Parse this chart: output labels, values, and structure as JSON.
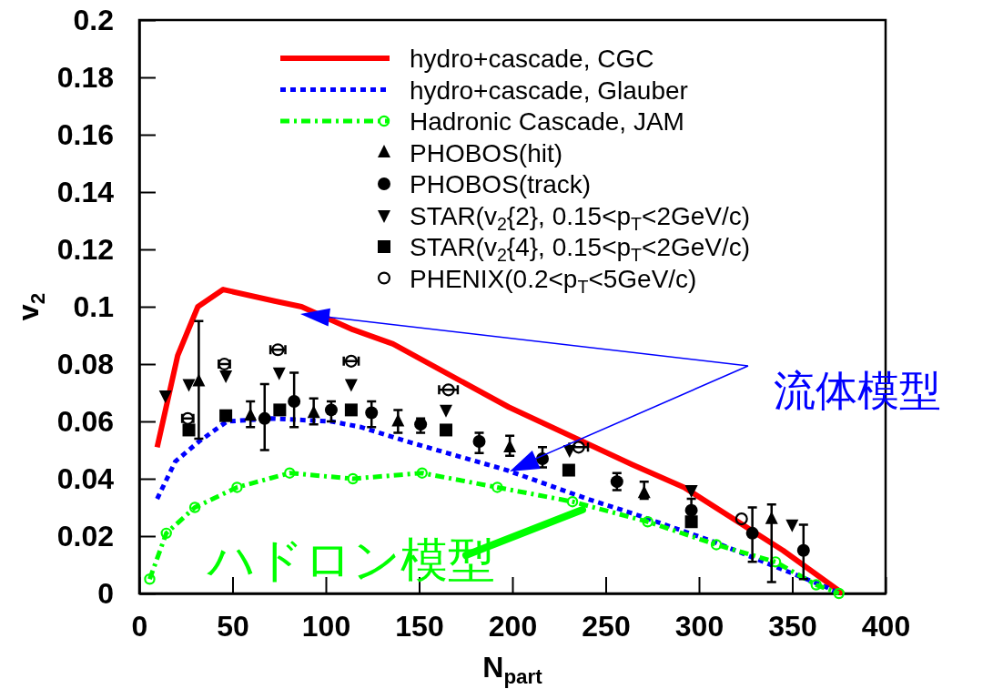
{
  "chart_data": {
    "type": "scatter",
    "xlabel": "N$_{part}$",
    "ylabel": "v$_{2}$",
    "xlim": [
      0,
      400
    ],
    "ylim": [
      0,
      0.2
    ],
    "xticks": [
      0,
      50,
      100,
      150,
      200,
      250,
      300,
      350,
      400
    ],
    "yticks": [
      0,
      0.02,
      0.04,
      0.06,
      0.08,
      0.1,
      0.12,
      0.14,
      0.16,
      0.18,
      0.2
    ],
    "grid": false,
    "legend": "top right",
    "series": [
      {
        "name": "hydro+cascade, CGC",
        "type": "line",
        "color": "#ff0000",
        "line_style": "solid",
        "marker": "none",
        "x": [
          9.6,
          20.6,
          31.4,
          45,
          72.5,
          87,
          114.5,
          136,
          198,
          264,
          292,
          345,
          377
        ],
        "values": [
          0.051,
          0.083,
          0.1,
          0.106,
          0.102,
          0.1,
          0.092,
          0.087,
          0.065,
          0.045,
          0.037,
          0.015,
          0
        ]
      },
      {
        "name": "hydro+cascade, Glauber",
        "type": "line",
        "color": "#0000ff",
        "line_style": "dotted",
        "marker": "none",
        "x": [
          9.6,
          19.3,
          32,
          47,
          71,
          103,
          119,
          143.5,
          197,
          240,
          264,
          308,
          369,
          375
        ],
        "values": [
          0.033,
          0.046,
          0.053,
          0.06,
          0.061,
          0.06,
          0.058,
          0.053,
          0.043,
          0.033,
          0.028,
          0.018,
          0.002,
          0
        ]
      },
      {
        "name": "Hadronic Cascade, JAM",
        "type": "line",
        "color": "#00ff00",
        "line_style": "dashdot",
        "marker": "circle-open",
        "x": [
          5.6,
          14.5,
          29.8,
          52.4,
          80.6,
          114.5,
          151.6,
          191.9,
          232.2,
          272.5,
          309.3,
          341,
          362.8,
          375
        ],
        "values": [
          0.005,
          0.021,
          0.03,
          0.037,
          0.042,
          0.04,
          0.042,
          0.037,
          0.032,
          0.025,
          0.017,
          0.011,
          0.003,
          0
        ]
      },
      {
        "name": "PHOBOS(hit)",
        "type": "scatter",
        "color": "#000000",
        "marker": "triangle",
        "x": [
          31.9,
          59.6,
          93.5,
          138.7,
          198.6,
          270.6,
          338.9
        ],
        "values": [
          0.074,
          0.062,
          0.063,
          0.06,
          0.051,
          0.035,
          0.026
        ],
        "errors": [
          [
            0.054,
            0.095
          ],
          [
            0.058,
            0.067
          ],
          [
            0.059,
            0.068
          ],
          [
            0.056,
            0.064
          ],
          [
            0.048,
            0.055
          ],
          [
            0.033,
            0.039
          ],
          [
            0.004,
            0.031
          ]
        ]
      },
      {
        "name": "PHOBOS(track)",
        "type": "scatter",
        "color": "#000000",
        "marker": "circle",
        "x": [
          67.2,
          83,
          102.9,
          124.5,
          150.8,
          182.2,
          216.1,
          256,
          295.9,
          328.6,
          356
        ],
        "values": [
          0.061,
          0.067,
          0.064,
          0.063,
          0.059,
          0.053,
          0.047,
          0.039,
          0.029,
          0.021,
          0.015
        ],
        "errors": [
          [
            0.05,
            0.073
          ],
          [
            0.058,
            0.077
          ],
          [
            0.06,
            0.067
          ],
          [
            0.058,
            0.067
          ],
          [
            0.056,
            0.061
          ],
          [
            0.049,
            0.056
          ],
          [
            0.044,
            0.051
          ],
          [
            0.036,
            0.042
          ],
          [
            0.029,
            0.033
          ],
          [
            0.011,
            0.03
          ],
          [
            0.005,
            0.024
          ]
        ]
      },
      {
        "name": "STAR(v$_{2}${2}, 0.15<p$_{T}$<2GeV/c)",
        "type": "scatter",
        "color": "#000000",
        "marker": "triangle-down",
        "x": [
          14,
          26.6,
          46.4,
          75,
          113.6,
          164.4,
          230.6,
          295.9,
          349.9
        ],
        "values": [
          0.069,
          0.073,
          0.076,
          0.077,
          0.073,
          0.064,
          0.05,
          0.036,
          0.024
        ]
      },
      {
        "name": "STAR(v$_{2}${4}, 0.15<p$_{T}$<2GeV/c)",
        "type": "scatter",
        "color": "#000000",
        "marker": "square",
        "x": [
          26.6,
          46.4,
          75.3,
          113.6,
          164.4,
          230.2,
          295.9
        ],
        "values": [
          0.057,
          0.062,
          0.064,
          0.064,
          0.057,
          0.043,
          0.025
        ]
      },
      {
        "name": "PHENIX(0.2<p$_{T}$<5GeV/c)",
        "type": "scatter",
        "color": "#000000",
        "marker": "circle-open",
        "x": [
          26,
          45.6,
          74.3,
          113.6,
          165.7,
          235.5,
          322.8
        ],
        "values": [
          0.061,
          0.08,
          0.085,
          0.081,
          0.071,
          0.051,
          0.026
        ],
        "xerrors": [
          3,
          3,
          4,
          4,
          5,
          5,
          null
        ]
      }
    ],
    "annotations": [
      "流体模型",
      "ハドロン模型"
    ]
  }
}
